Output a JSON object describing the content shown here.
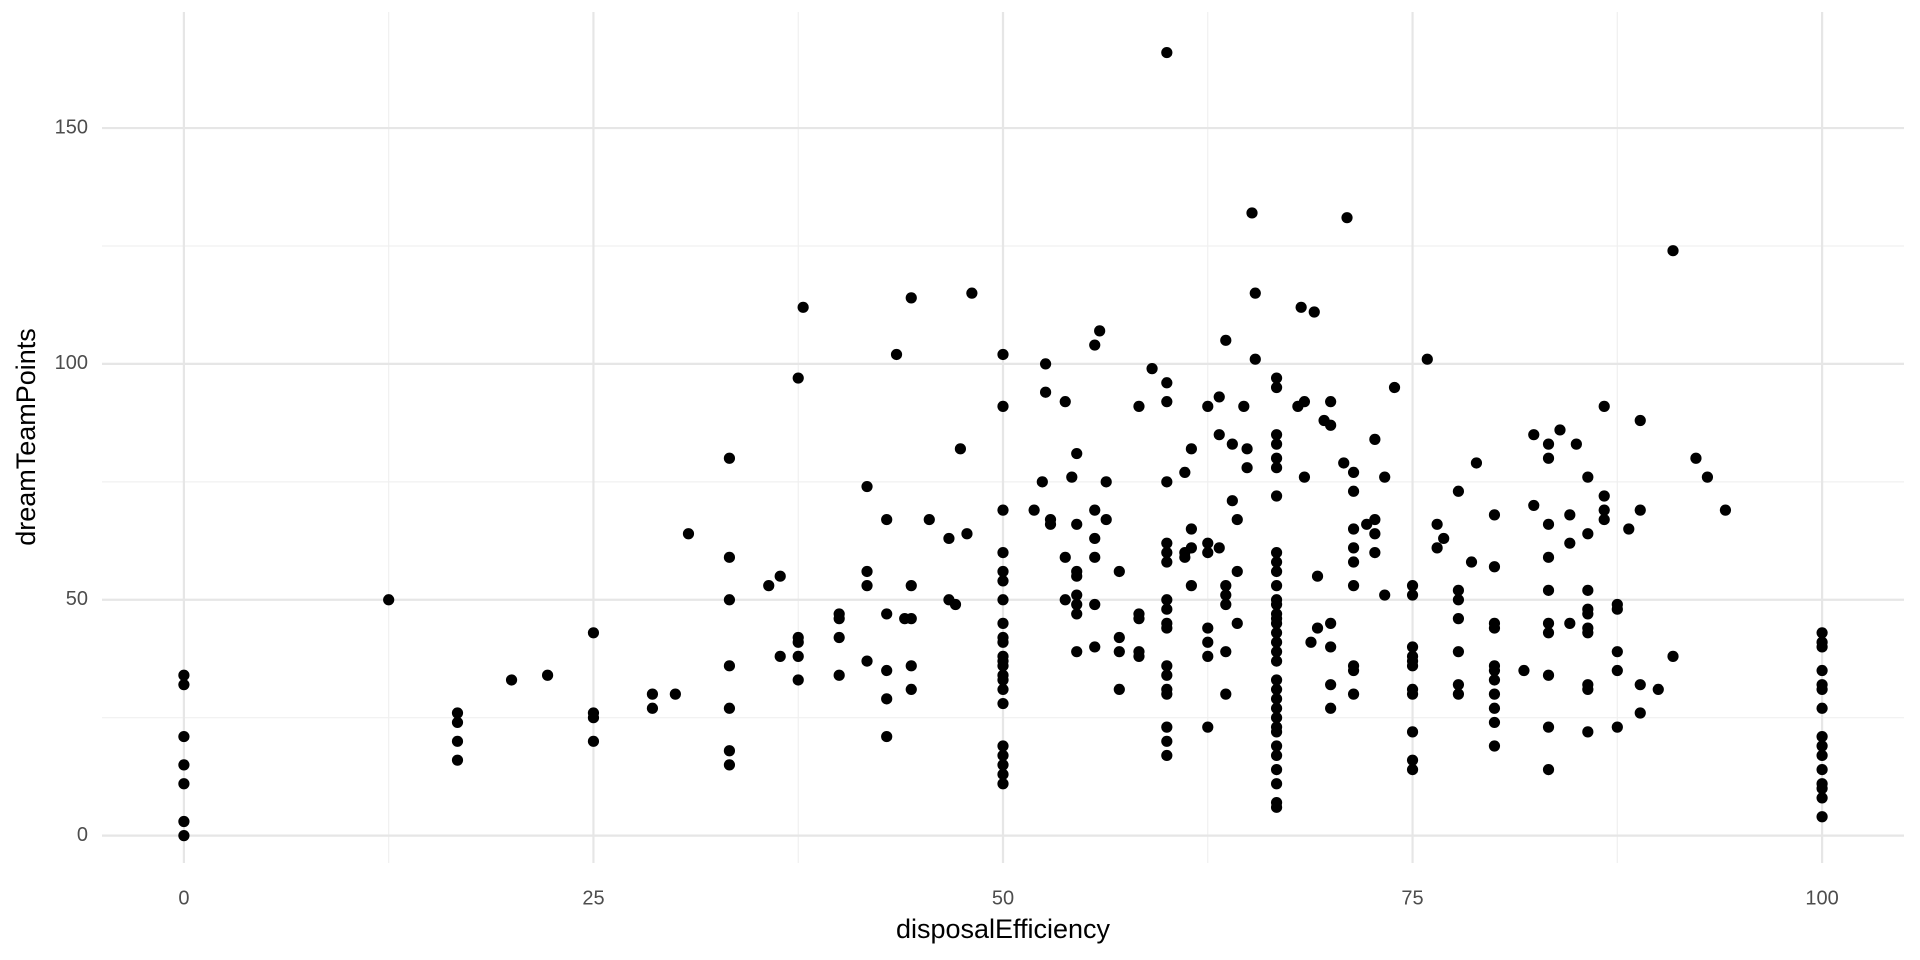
{
  "chart_data": {
    "type": "scatter",
    "x_label": "disposalEfficiency",
    "y_label": "dreamTeamPoints",
    "color": "#000000",
    "grid": true,
    "xlim": [
      -5,
      105
    ],
    "ylim": [
      -5.8,
      174.6
    ],
    "xticks": [
      0,
      25,
      50,
      75,
      100
    ],
    "yticks": [
      0,
      50,
      100,
      150
    ],
    "x_minor_grid": [
      12.5,
      37.5,
      62.5,
      87.5
    ],
    "y_minor_grid": [
      25,
      75,
      125
    ],
    "x": [
      0,
      0,
      0,
      0,
      0,
      0,
      0,
      12.5,
      16.7,
      16.7,
      16.7,
      16.7,
      20,
      22.2,
      25,
      25,
      25,
      25,
      28.6,
      28.6,
      30,
      30.8,
      33.3,
      33.3,
      33.3,
      33.3,
      33.3,
      33.3,
      33.3,
      35.7,
      36.4,
      36.4,
      37.5,
      37.5,
      37.5,
      37.5,
      37.5,
      37.8,
      40,
      40,
      40,
      40,
      41.7,
      41.7,
      41.7,
      41.7,
      42.9,
      42.9,
      42.9,
      42.9,
      42.9,
      43.5,
      44,
      44.4,
      44.4,
      44.4,
      44.4,
      44.4,
      45.5,
      46.7,
      46.7,
      47.1,
      47.4,
      47.8,
      48.1,
      50,
      50,
      50,
      50,
      50,
      50,
      50,
      50,
      50,
      50,
      50,
      50,
      50,
      50,
      50,
      50,
      50,
      50,
      50,
      50,
      50,
      50,
      51.9,
      52.4,
      52.6,
      52.6,
      52.9,
      52.9,
      53.8,
      53.8,
      53.8,
      54.2,
      54.5,
      54.5,
      54.5,
      54.5,
      54.5,
      54.5,
      54.5,
      54.5,
      55.6,
      55.6,
      55.6,
      55.6,
      55.6,
      55.6,
      55.9,
      56.3,
      56.3,
      57.1,
      57.1,
      57.1,
      57.1,
      58.3,
      58.3,
      58.3,
      58.3,
      58.3,
      59.1,
      60,
      60,
      60,
      60,
      60,
      60,
      60,
      60,
      60,
      60,
      60,
      60,
      60,
      60,
      60,
      60,
      60,
      60,
      61.1,
      61.1,
      61.1,
      61.5,
      61.5,
      61.5,
      61.5,
      62.5,
      62.5,
      62.5,
      62.5,
      62.5,
      62.5,
      62.5,
      63.2,
      63.2,
      63.2,
      63.6,
      63.6,
      63.6,
      63.6,
      63.6,
      63.6,
      64,
      64,
      64.3,
      64.3,
      64.3,
      64.7,
      64.9,
      64.9,
      65.2,
      65.4,
      65.4,
      66.7,
      66.7,
      66.7,
      66.7,
      66.7,
      66.7,
      66.7,
      66.7,
      66.7,
      66.7,
      66.7,
      66.7,
      66.7,
      66.7,
      66.7,
      66.7,
      66.7,
      66.7,
      66.7,
      66.7,
      66.7,
      66.7,
      66.7,
      66.7,
      66.7,
      66.7,
      66.7,
      66.7,
      66.7,
      66.7,
      66.7,
      66.7,
      66.7,
      68,
      68.2,
      68.4,
      68.4,
      68.8,
      69,
      69.2,
      69.2,
      69.6,
      70,
      70,
      70,
      70,
      70,
      70,
      70.8,
      71,
      71.4,
      71.4,
      71.4,
      71.4,
      71.4,
      71.4,
      71.4,
      71.4,
      71.4,
      72.2,
      72.7,
      72.7,
      72.7,
      72.7,
      73.3,
      73.3,
      73.9,
      75,
      75,
      75,
      75,
      75,
      75,
      75,
      75,
      75,
      75,
      75,
      75.9,
      76.5,
      76.5,
      76.9,
      77.8,
      77.8,
      77.8,
      77.8,
      77.8,
      77.8,
      77.8,
      78.6,
      78.9,
      80,
      80,
      80,
      80,
      80,
      80,
      80,
      80,
      80,
      80,
      80,
      81.8,
      82.4,
      82.4,
      83.3,
      83.3,
      83.3,
      83.3,
      83.3,
      83.3,
      83.3,
      83.3,
      83.3,
      83.3,
      84,
      84.6,
      84.6,
      84.6,
      85,
      85.7,
      85.7,
      85.7,
      85.7,
      85.7,
      85.7,
      85.7,
      85.7,
      85.7,
      85.7,
      86.7,
      86.7,
      86.7,
      86.7,
      87.5,
      87.5,
      87.5,
      87.5,
      87.5,
      88.2,
      88.9,
      88.9,
      88.9,
      88.9,
      90,
      90.9,
      90.9,
      92.3,
      93,
      94.1,
      100,
      100,
      100,
      100,
      100,
      100,
      100,
      100,
      100,
      100,
      100,
      100,
      100,
      100,
      100
    ],
    "y": [
      34,
      32,
      21,
      15,
      11,
      3,
      0,
      50,
      26,
      24,
      20,
      16,
      33,
      34,
      43,
      26,
      25,
      20,
      30,
      27,
      30,
      64,
      80,
      59,
      50,
      36,
      27,
      18,
      15,
      53,
      55,
      38,
      97,
      42,
      41,
      38,
      33,
      112,
      47,
      46,
      42,
      34,
      74,
      56,
      53,
      37,
      67,
      47,
      35,
      29,
      21,
      102,
      46,
      114,
      53,
      46,
      36,
      31,
      67,
      50,
      63,
      49,
      82,
      64,
      115,
      102,
      91,
      69,
      60,
      56,
      54,
      50,
      45,
      42,
      41,
      38,
      37,
      36,
      34,
      33,
      31,
      28,
      19,
      17,
      15,
      13,
      11,
      69,
      75,
      100,
      94,
      67,
      66,
      92,
      59,
      50,
      76,
      81,
      66,
      56,
      55,
      51,
      49,
      47,
      39,
      104,
      69,
      63,
      59,
      49,
      40,
      107,
      75,
      67,
      56,
      42,
      39,
      31,
      91,
      47,
      46,
      39,
      38,
      99,
      166,
      96,
      92,
      75,
      62,
      60,
      58,
      50,
      48,
      45,
      44,
      36,
      34,
      31,
      30,
      23,
      20,
      17,
      77,
      60,
      59,
      82,
      65,
      61,
      53,
      91,
      62,
      60,
      44,
      41,
      38,
      23,
      93,
      85,
      61,
      105,
      53,
      51,
      49,
      39,
      30,
      83,
      71,
      67,
      56,
      45,
      91,
      82,
      78,
      132,
      115,
      101,
      97,
      95,
      85,
      83,
      80,
      78,
      72,
      60,
      58,
      56,
      53,
      50,
      49,
      47,
      46,
      45,
      43,
      41,
      39,
      37,
      33,
      31,
      29,
      27,
      25,
      23,
      22,
      19,
      17,
      14,
      11,
      7,
      6,
      91,
      112,
      92,
      76,
      41,
      111,
      55,
      44,
      88,
      92,
      87,
      45,
      40,
      32,
      27,
      79,
      131,
      77,
      73,
      65,
      61,
      58,
      53,
      36,
      35,
      30,
      66,
      84,
      67,
      64,
      60,
      76,
      51,
      95,
      53,
      51,
      40,
      38,
      37,
      36,
      31,
      30,
      22,
      16,
      14,
      101,
      66,
      61,
      63,
      73,
      52,
      50,
      46,
      39,
      32,
      30,
      58,
      79,
      68,
      57,
      45,
      44,
      36,
      35,
      33,
      30,
      27,
      24,
      19,
      35,
      85,
      70,
      83,
      80,
      66,
      59,
      52,
      45,
      43,
      34,
      23,
      14,
      86,
      68,
      62,
      45,
      83,
      76,
      64,
      52,
      48,
      47,
      44,
      43,
      32,
      31,
      22,
      91,
      72,
      69,
      67,
      49,
      48,
      39,
      35,
      23,
      65,
      88,
      69,
      32,
      26,
      31,
      124,
      38,
      80,
      76,
      69,
      43,
      41,
      40,
      35,
      32,
      31,
      27,
      21,
      19,
      17,
      14,
      11,
      10,
      8,
      4
    ]
  }
}
